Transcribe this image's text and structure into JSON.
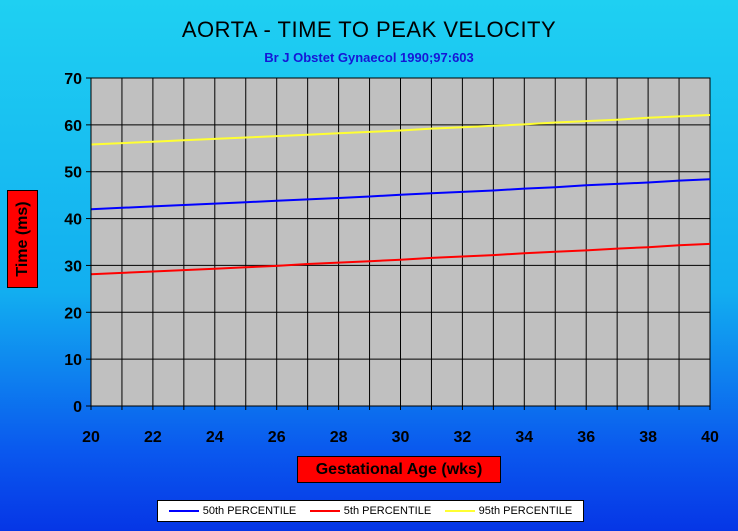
{
  "chart_data": {
    "type": "line",
    "title": "AORTA - TIME TO PEAK VELOCITY",
    "subtitle": "Br J Obstet Gynaecol 1990;97:603",
    "xlabel": "Gestational Age (wks)",
    "ylabel": "Time (ms)",
    "xlim": [
      20,
      40
    ],
    "ylim": [
      0,
      70
    ],
    "x_ticks": [
      20,
      22,
      24,
      26,
      28,
      30,
      32,
      34,
      36,
      38,
      40
    ],
    "y_ticks": [
      0,
      10,
      20,
      30,
      40,
      50,
      60,
      70
    ],
    "grid": true,
    "legend_position": "bottom",
    "plot_background": "#c0c0c0",
    "series": [
      {
        "name": "50th PERCENTILE",
        "color": "#0000ff",
        "x": [
          20,
          21,
          22,
          23,
          24,
          25,
          26,
          27,
          28,
          29,
          30,
          31,
          32,
          33,
          34,
          35,
          36,
          37,
          38,
          39,
          40
        ],
        "values": [
          42.0,
          42.3,
          42.6,
          42.9,
          43.2,
          43.5,
          43.8,
          44.1,
          44.4,
          44.7,
          45.1,
          45.4,
          45.7,
          46.0,
          46.4,
          46.7,
          47.1,
          47.4,
          47.7,
          48.1,
          48.4
        ]
      },
      {
        "name": "5th PERCENTILE",
        "color": "#ff0000",
        "x": [
          20,
          21,
          22,
          23,
          24,
          25,
          26,
          27,
          28,
          29,
          30,
          31,
          32,
          33,
          34,
          35,
          36,
          37,
          38,
          39,
          40
        ],
        "values": [
          28.1,
          28.4,
          28.7,
          29.0,
          29.3,
          29.6,
          29.9,
          30.3,
          30.6,
          30.9,
          31.2,
          31.6,
          31.9,
          32.2,
          32.6,
          32.9,
          33.2,
          33.6,
          33.9,
          34.3,
          34.6
        ]
      },
      {
        "name": "95th PERCENTILE",
        "color": "#ffff33",
        "x": [
          20,
          21,
          22,
          23,
          24,
          25,
          26,
          27,
          28,
          29,
          30,
          31,
          32,
          33,
          34,
          35,
          36,
          37,
          38,
          39,
          40
        ],
        "values": [
          55.8,
          56.1,
          56.4,
          56.7,
          57.0,
          57.3,
          57.6,
          57.9,
          58.2,
          58.5,
          58.8,
          59.2,
          59.5,
          59.8,
          60.1,
          60.5,
          60.8,
          61.1,
          61.5,
          61.8,
          62.1
        ]
      }
    ]
  }
}
